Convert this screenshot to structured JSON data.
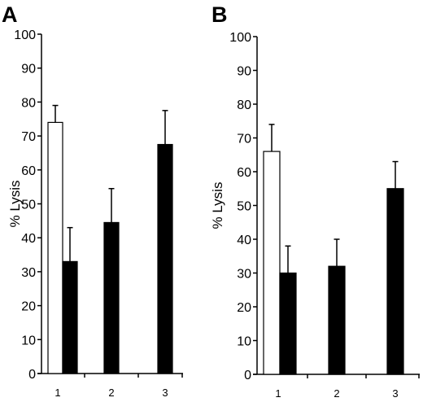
{
  "chart_data": [
    {
      "type": "bar",
      "panel": "A",
      "ylabel": "% Lysis",
      "xlabel": "",
      "ylim": [
        0,
        100
      ],
      "yticks": [
        "0",
        "10",
        "20",
        "30",
        "40",
        "50",
        "60",
        "70",
        "80",
        "90",
        "100"
      ],
      "categories": [
        "1",
        "2",
        "3"
      ],
      "grid": false,
      "bars": [
        {
          "category": "1",
          "fill": "open",
          "value": 74,
          "error": 5
        },
        {
          "category": "1",
          "fill": "solid",
          "value": 33,
          "error": 10
        },
        {
          "category": "2",
          "fill": "solid",
          "value": 44.5,
          "error": 10
        },
        {
          "category": "3",
          "fill": "solid",
          "value": 67.5,
          "error": 10
        }
      ]
    },
    {
      "type": "bar",
      "panel": "B",
      "ylabel": "% Lysis",
      "xlabel": "",
      "ylim": [
        0,
        100
      ],
      "yticks": [
        "0",
        "10",
        "20",
        "30",
        "40",
        "50",
        "60",
        "70",
        "80",
        "90",
        "100"
      ],
      "categories": [
        "1",
        "2",
        "3"
      ],
      "grid": false,
      "bars": [
        {
          "category": "1",
          "fill": "open",
          "value": 66,
          "error": 8
        },
        {
          "category": "1",
          "fill": "solid",
          "value": 30,
          "error": 8
        },
        {
          "category": "2",
          "fill": "solid",
          "value": 32,
          "error": 8
        },
        {
          "category": "3",
          "fill": "solid",
          "value": 55,
          "error": 8
        }
      ]
    }
  ],
  "colors": {
    "solid_bar": "#000000",
    "open_bar": "#ffffff",
    "axis": "#000000"
  }
}
